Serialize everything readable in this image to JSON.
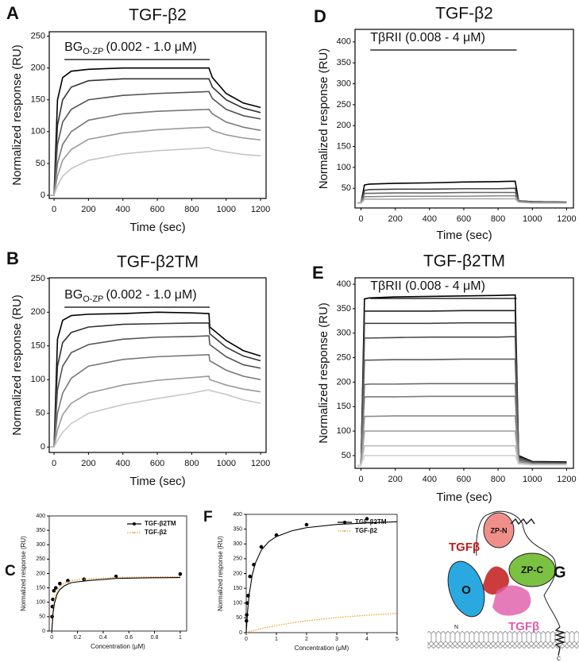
{
  "chart_data": [
    {
      "type": "line",
      "panel": "A",
      "title": "TGF-β2",
      "annotation": {
        "text": "BG",
        "sub": "O-ZP",
        "rest": "(0.002 - 1.0 μM)"
      },
      "xlabel": "Time (sec)",
      "ylabel": "Normalized response (RU)",
      "x": [
        -20,
        0,
        20,
        50,
        100,
        200,
        400,
        600,
        800,
        900,
        920,
        1000,
        1100,
        1200
      ],
      "series": [
        {
          "color": "#000000",
          "values": [
            0,
            0,
            150,
            185,
            195,
            198,
            200,
            200,
            200,
            200,
            185,
            160,
            145,
            138
          ]
        },
        {
          "color": "#333333",
          "values": [
            0,
            0,
            110,
            150,
            170,
            180,
            183,
            183,
            183,
            183,
            170,
            150,
            137,
            130
          ]
        },
        {
          "color": "#555555",
          "values": [
            0,
            0,
            80,
            115,
            135,
            150,
            157,
            160,
            162,
            163,
            152,
            135,
            125,
            120
          ]
        },
        {
          "color": "#777777",
          "values": [
            0,
            0,
            50,
            80,
            100,
            118,
            128,
            132,
            134,
            135,
            128,
            115,
            107,
            102
          ]
        },
        {
          "color": "#9a9a9a",
          "values": [
            0,
            0,
            30,
            55,
            72,
            88,
            98,
            103,
            106,
            107,
            102,
            95,
            90,
            87
          ]
        },
        {
          "color": "#c4c4c4",
          "values": [
            0,
            0,
            15,
            30,
            42,
            55,
            65,
            70,
            73,
            75,
            72,
            68,
            64,
            62
          ]
        }
      ],
      "xlim": [
        -28,
        1232
      ],
      "xticks": [
        0,
        200,
        400,
        600,
        800,
        1000,
        1200
      ],
      "ylim": [
        -5,
        257
      ],
      "yticks": [
        0,
        50,
        100,
        150,
        200,
        250
      ]
    },
    {
      "type": "line",
      "panel": "B",
      "title": "TGF-β2TM",
      "annotation": {
        "text": "BG",
        "sub": "O-ZP",
        "rest": "(0.002 - 1.0 μM)"
      },
      "xlabel": "Time (sec)",
      "ylabel": "Normalized response (RU)",
      "x": [
        -20,
        0,
        20,
        50,
        100,
        200,
        400,
        600,
        800,
        900,
        905,
        1000,
        1100,
        1200
      ],
      "series": [
        {
          "color": "#000000",
          "values": [
            0,
            0,
            160,
            188,
            195,
            197,
            198,
            200,
            199,
            198,
            178,
            158,
            143,
            135
          ]
        },
        {
          "color": "#333333",
          "values": [
            0,
            0,
            120,
            155,
            170,
            178,
            182,
            183,
            184,
            184,
            168,
            148,
            135,
            128
          ]
        },
        {
          "color": "#555555",
          "values": [
            0,
            0,
            85,
            120,
            140,
            152,
            160,
            163,
            164,
            165,
            152,
            134,
            122,
            117
          ]
        },
        {
          "color": "#777777",
          "values": [
            0,
            0,
            50,
            80,
            102,
            120,
            130,
            134,
            136,
            137,
            128,
            114,
            105,
            100
          ]
        },
        {
          "color": "#9a9a9a",
          "values": [
            0,
            0,
            25,
            48,
            65,
            80,
            92,
            99,
            103,
            105,
            100,
            92,
            86,
            82
          ]
        },
        {
          "color": "#c8c8c8",
          "values": [
            0,
            0,
            10,
            22,
            35,
            50,
            63,
            72,
            80,
            85,
            84,
            78,
            70,
            65
          ]
        }
      ],
      "xlim": [
        -28,
        1232
      ],
      "xticks": [
        0,
        200,
        400,
        600,
        800,
        1000,
        1200
      ],
      "ylim": [
        -8,
        251
      ],
      "yticks": [
        0,
        50,
        100,
        150,
        200,
        250
      ]
    },
    {
      "type": "scatter",
      "panel": "C",
      "xlabel": "Concentration (μM)",
      "ylabel": "Normalized response (RU)",
      "series": [
        {
          "name": "TGF-β2TM",
          "color": "#000000",
          "markers": true,
          "x": [
            0.002,
            0.004,
            0.008,
            0.016,
            0.031,
            0.0625,
            0.125,
            0.25,
            0.5,
            1.0
          ],
          "values": [
            50,
            85,
            110,
            140,
            150,
            165,
            175,
            180,
            190,
            198
          ]
        },
        {
          "name": "TGF-β2",
          "color": "#f0a030",
          "dash": true,
          "x": [
            0,
            0.01,
            0.02,
            0.04,
            0.06,
            0.1,
            0.15,
            0.2,
            0.3,
            0.5,
            0.75,
            1.0
          ],
          "values": [
            0,
            77,
            110,
            139,
            154,
            167,
            175,
            178,
            182,
            186,
            188,
            189
          ]
        },
        {
          "color": "#000000",
          "x": [
            0,
            0.01,
            0.02,
            0.04,
            0.06,
            0.1,
            0.15,
            0.2,
            0.3,
            0.5,
            0.75,
            1.0
          ],
          "values": [
            0,
            63,
            95,
            127,
            143,
            158,
            168,
            171,
            176,
            183,
            185,
            186
          ]
        }
      ],
      "xlim": [
        -0.02,
        1.05
      ],
      "xticks": [
        0,
        0.2,
        0.4,
        0.6,
        0.8,
        1
      ],
      "ylim": [
        0,
        400
      ],
      "yticks": [
        0,
        50,
        100,
        150,
        200,
        250,
        300,
        350,
        400
      ]
    },
    {
      "type": "line",
      "panel": "D",
      "title": "TGF-β2",
      "annotation": {
        "rest": "TβRII (0.008 - 4 μM)"
      },
      "xlabel": "Time (sec)",
      "ylabel": "Normalized response (RU)",
      "x": [
        -20,
        0,
        20,
        50,
        200,
        400,
        600,
        800,
        900,
        920,
        1000,
        1200
      ],
      "series": [
        {
          "color": "#000000",
          "values": [
            15,
            15,
            58,
            60,
            62,
            63,
            65,
            66,
            67,
            20,
            18,
            17
          ]
        },
        {
          "color": "#444444",
          "values": [
            15,
            15,
            45,
            47,
            48,
            48,
            49,
            49,
            50,
            20,
            18,
            17
          ]
        },
        {
          "color": "#666666",
          "values": [
            15,
            15,
            38,
            38,
            39,
            39,
            40,
            40,
            40,
            19,
            17,
            16
          ]
        },
        {
          "color": "#888888",
          "values": [
            15,
            15,
            30,
            30,
            31,
            31,
            31,
            32,
            32,
            18,
            16,
            15
          ]
        },
        {
          "color": "#aaaaaa",
          "values": [
            15,
            15,
            24,
            24,
            24,
            25,
            25,
            25,
            25,
            17,
            15,
            15
          ]
        }
      ],
      "xlim": [
        -35,
        1240
      ],
      "xticks": [
        0,
        200,
        400,
        600,
        800,
        1000,
        1200
      ],
      "ylim": [
        3,
        430
      ],
      "yticks": [
        50,
        100,
        150,
        200,
        250,
        300,
        350,
        400
      ]
    },
    {
      "type": "line",
      "panel": "E",
      "title": "TGF-β2TM",
      "annotation": {
        "rest": "TβRII (0.008 - 4 μM)"
      },
      "xlabel": "Time (sec)",
      "ylabel": "Normalized response (RU)",
      "x": [
        -20,
        0,
        20,
        50,
        200,
        400,
        600,
        800,
        900,
        920,
        1000,
        1200
      ],
      "series": [
        {
          "color": "#000000",
          "values": [
            30,
            30,
            370,
            372,
            374,
            375,
            376,
            377,
            378,
            50,
            38,
            37
          ]
        },
        {
          "color": "#222222",
          "values": [
            30,
            30,
            345,
            345,
            345,
            345,
            346,
            346,
            346,
            48,
            37,
            36
          ]
        },
        {
          "color": "#383838",
          "values": [
            30,
            30,
            320,
            320,
            320,
            320,
            321,
            321,
            321,
            47,
            36,
            35
          ]
        },
        {
          "color": "#4a4a4a",
          "values": [
            30,
            30,
            290,
            290,
            291,
            292,
            292,
            292,
            293,
            46,
            36,
            35
          ]
        },
        {
          "color": "#5a5a5a",
          "values": [
            30,
            30,
            245,
            245,
            246,
            246,
            247,
            247,
            247,
            44,
            35,
            34
          ]
        },
        {
          "color": "#6a6a6a",
          "values": [
            30,
            30,
            195,
            196,
            196,
            197,
            197,
            197,
            197,
            42,
            34,
            33
          ]
        },
        {
          "color": "#7a7a7a",
          "values": [
            30,
            30,
            170,
            170,
            170,
            171,
            171,
            171,
            171,
            40,
            34,
            33
          ]
        },
        {
          "color": "#8c8c8c",
          "values": [
            30,
            30,
            130,
            130,
            131,
            131,
            131,
            131,
            131,
            38,
            33,
            32
          ]
        },
        {
          "color": "#a0a0a0",
          "values": [
            30,
            30,
            100,
            100,
            100,
            100,
            100,
            100,
            100,
            36,
            32,
            32
          ]
        },
        {
          "color": "#b8b8b8",
          "values": [
            30,
            30,
            70,
            70,
            70,
            70,
            70,
            70,
            70,
            34,
            31,
            31
          ]
        },
        {
          "color": "#d0d0d0",
          "values": [
            30,
            30,
            50,
            50,
            50,
            50,
            50,
            50,
            50,
            33,
            31,
            31
          ]
        }
      ],
      "xlim": [
        -35,
        1240
      ],
      "xticks": [
        0,
        200,
        400,
        600,
        800,
        1000,
        1200
      ],
      "ylim": [
        24,
        413
      ],
      "yticks": [
        50,
        100,
        150,
        200,
        250,
        300,
        350,
        400
      ]
    },
    {
      "type": "scatter",
      "panel": "F",
      "xlabel": "Concentration (μM)",
      "ylabel": "Normalized response (RU)",
      "series": [
        {
          "name": "TGF-β2TM",
          "color": "#000000",
          "markers": true,
          "x": [
            0.008,
            0.016,
            0.031,
            0.0625,
            0.125,
            0.25,
            0.5,
            1,
            2,
            4
          ],
          "values": [
            40,
            60,
            100,
            125,
            190,
            230,
            290,
            330,
            365,
            385
          ]
        },
        {
          "name": "TGF-β2",
          "color": "#f0a030",
          "dash": true,
          "x": [
            0,
            0.5,
            1,
            1.5,
            2,
            3,
            4,
            5
          ],
          "values": [
            0,
            14,
            24,
            33,
            40,
            51,
            59,
            65
          ]
        },
        {
          "color": "#000000",
          "x": [
            0,
            0.05,
            0.1,
            0.2,
            0.3,
            0.5,
            0.75,
            1,
            1.5,
            2,
            3,
            4,
            5
          ],
          "values": [
            0,
            78,
            130,
            195,
            234,
            279,
            308,
            325,
            344,
            355,
            366,
            371,
            375
          ]
        }
      ],
      "xlim": [
        0,
        5
      ],
      "xticks": [
        0,
        1,
        2,
        3,
        4,
        5
      ],
      "ylim": [
        0,
        400
      ],
      "yticks": [
        0,
        50,
        100,
        150,
        200,
        250,
        300,
        350,
        400
      ]
    }
  ],
  "diagram": {
    "panel": "G",
    "labels": {
      "tgfb_red": "TGFβ",
      "zpn": "ZP-N",
      "o": "O",
      "zpc": "ZP-C",
      "tgfb_pink": "TGFβ",
      "n": "N",
      "c": "C"
    }
  }
}
